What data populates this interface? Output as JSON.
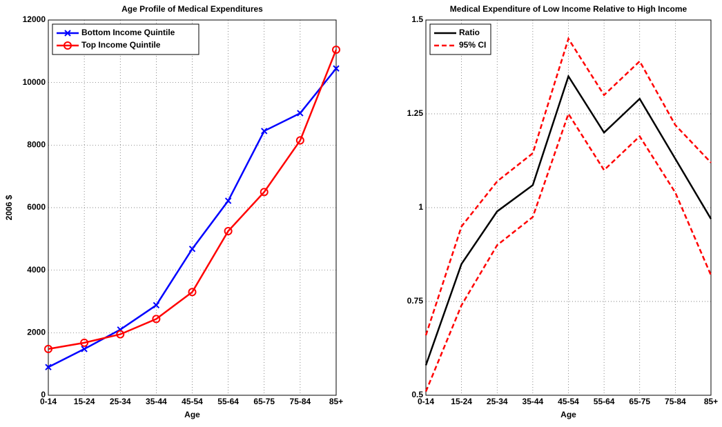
{
  "chart_data": [
    {
      "type": "line",
      "title": "Age Profile of Medical Expenditures",
      "x_label": "Age",
      "y_label": "2006 $",
      "categories": [
        "0-14",
        "15-24",
        "25-34",
        "35-44",
        "45-54",
        "55-64",
        "65-75",
        "75-84",
        "85+"
      ],
      "series": [
        {
          "name": "Bottom Income Quintile",
          "color": "#0000ff",
          "marker": "x",
          "style": "solid",
          "values": [
            900,
            1480,
            2100,
            2880,
            4680,
            6220,
            8450,
            9020,
            10450
          ]
        },
        {
          "name": "Top Income Quintile",
          "color": "#ff0000",
          "marker": "o",
          "style": "solid",
          "values": [
            1480,
            1680,
            1950,
            2440,
            3300,
            5250,
            6500,
            8150,
            11050
          ]
        }
      ],
      "ylim": [
        0,
        12000
      ],
      "yticks": [
        0,
        2000,
        4000,
        6000,
        8000,
        10000,
        12000
      ],
      "grid": true,
      "legend": "top-left"
    },
    {
      "type": "line",
      "title": "Medical Expenditure of Low Income Relative to High Income",
      "x_label": "Age",
      "categories": [
        "0-14",
        "15-24",
        "25-34",
        "35-44",
        "45-54",
        "55-64",
        "65-75",
        "75-84",
        "85+"
      ],
      "series": [
        {
          "name": "Ratio",
          "color": "#000000",
          "style": "solid",
          "values": [
            0.58,
            0.85,
            0.99,
            1.06,
            1.35,
            1.2,
            1.29,
            1.13,
            0.97
          ]
        },
        {
          "name": "95% CI",
          "color": "#ff0000",
          "style": "dashed",
          "upper": [
            0.66,
            0.95,
            1.07,
            1.145,
            1.45,
            1.3,
            1.39,
            1.22,
            1.12
          ],
          "lower": [
            0.51,
            0.74,
            0.9,
            0.975,
            1.25,
            1.1,
            1.19,
            1.04,
            0.82
          ]
        }
      ],
      "ylim": [
        0.5,
        1.5
      ],
      "yticks": [
        0.5,
        0.75,
        1,
        1.25,
        1.5
      ],
      "grid": true,
      "legend": "top-left"
    }
  ]
}
